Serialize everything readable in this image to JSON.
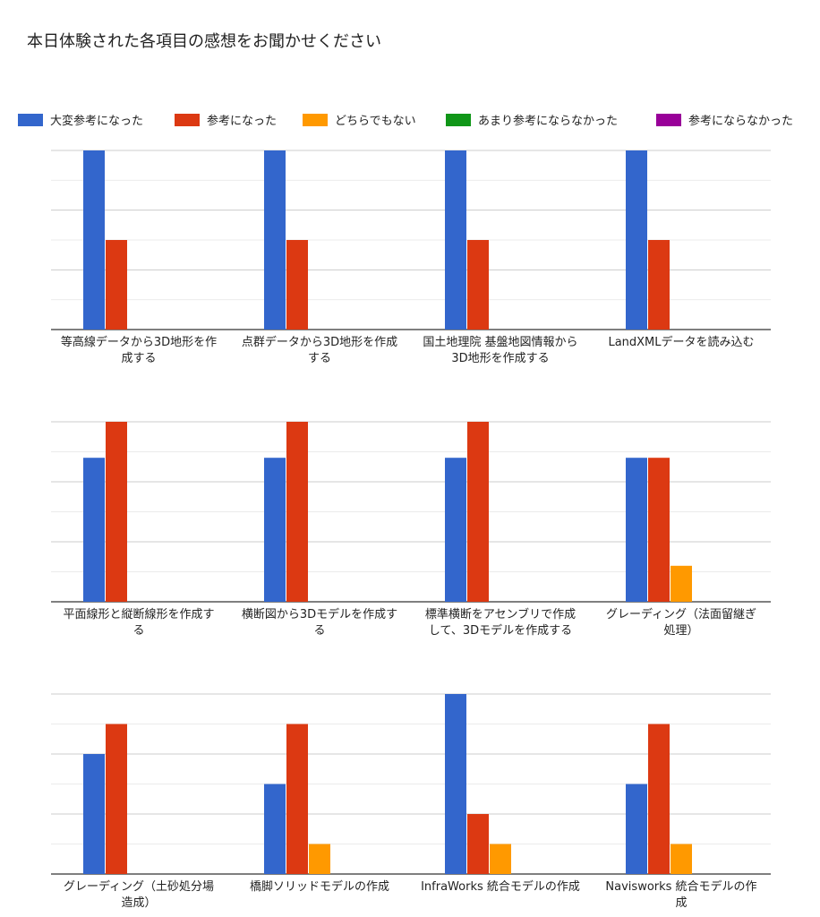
{
  "title": "本日体験された各項目の感想をお聞かせください",
  "chart_data": {
    "type": "bar",
    "title": "本日体験された各項目の感想をお聞かせください",
    "legend_position": "top",
    "grid": true,
    "series": [
      {
        "name": "大変参考になった",
        "color": "#3366cc"
      },
      {
        "name": "参考になった",
        "color": "#dc3912"
      },
      {
        "name": "どちらでもない",
        "color": "#ff9900"
      },
      {
        "name": "あまり参考にならなかった",
        "color": "#109618"
      },
      {
        "name": "参考にならなかった",
        "color": "#990099"
      }
    ],
    "panels": [
      {
        "ylim": [
          0,
          6
        ],
        "categories": [
          "等高線データから3D地形を作成する",
          "点群データから3D地形を作成する",
          "国土地理院 基盤地図情報から3D地形を作成する",
          "LandXMLデータを読み込む"
        ],
        "values": [
          [
            6,
            3,
            0,
            0,
            0
          ],
          [
            6,
            3,
            0,
            0,
            0
          ],
          [
            6,
            3,
            0,
            0,
            0
          ],
          [
            6,
            3,
            0,
            0,
            0
          ]
        ]
      },
      {
        "ylim": [
          0,
          5
        ],
        "categories": [
          "平面線形と縦断線形を作成する",
          "横断図から3Dモデルを作成する",
          "標準横断をアセンブリで作成して、3Dモデルを作成する",
          "グレーディング（法面留継ぎ処理）"
        ],
        "values": [
          [
            4,
            5,
            0,
            0,
            0
          ],
          [
            4,
            5,
            0,
            0,
            0
          ],
          [
            4,
            5,
            0,
            0,
            0
          ],
          [
            4,
            4,
            1,
            0,
            0
          ]
        ]
      },
      {
        "ylim": [
          0,
          6
        ],
        "categories": [
          "グレーディング（土砂処分場造成）",
          "橋脚ソリッドモデルの作成",
          "InfraWorks 統合モデルの作成",
          "Navisworks 統合モデルの作成"
        ],
        "values": [
          [
            4,
            5,
            0,
            0,
            0
          ],
          [
            3,
            5,
            1,
            0,
            0
          ],
          [
            6,
            2,
            1,
            0,
            0
          ],
          [
            3,
            5,
            1,
            0,
            0
          ]
        ]
      }
    ]
  }
}
